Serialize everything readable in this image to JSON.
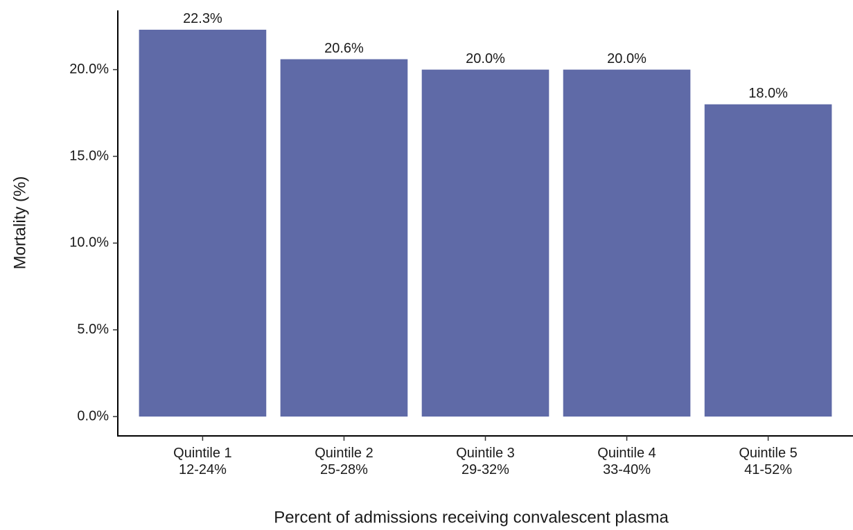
{
  "chart_data": {
    "type": "bar",
    "x_label": "Percent of admissions receiving convalescent plasma",
    "y_label": "Mortality (%)",
    "categories": [
      [
        "Quintile 1",
        "12-24%"
      ],
      [
        "Quintile 2",
        "25-28%"
      ],
      [
        "Quintile 3",
        "29-32%"
      ],
      [
        "Quintile 4",
        "33-40%"
      ],
      [
        "Quintile 5",
        "41-52%"
      ]
    ],
    "values": [
      22.3,
      20.6,
      20.0,
      20.0,
      18.0
    ],
    "value_labels": [
      "22.3%",
      "20.6%",
      "20.0%",
      "20.0%",
      "18.0%"
    ],
    "color": "#5f6aa7",
    "ylim": [
      -1.115,
      23.415
    ],
    "yticks": [
      {
        "value": 0,
        "label": "0.0%"
      },
      {
        "value": 5,
        "label": "5.0%"
      },
      {
        "value": 10,
        "label": "10.0%"
      },
      {
        "value": 15,
        "label": "15.0%"
      },
      {
        "value": 20,
        "label": "20.0%"
      }
    ],
    "grid": false
  }
}
